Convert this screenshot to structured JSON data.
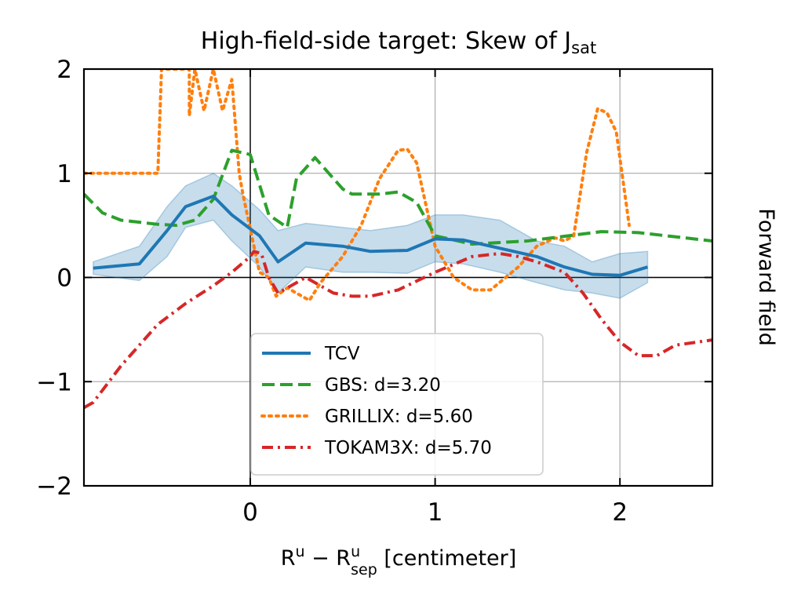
{
  "chart_data": {
    "type": "line",
    "title": "High-field-side target: Skew of J",
    "title_subscript": "sat",
    "xlabel": {
      "base1": "R",
      "sup1": "u",
      "minus": " − ",
      "base2": "R",
      "sup2": "u",
      "sub2": "sep",
      "unit": " [centimeter]"
    },
    "ylabel_right": "Forward field",
    "xlim": [
      -0.9,
      2.5
    ],
    "ylim": [
      -2,
      2
    ],
    "xticks": [
      0,
      1,
      2
    ],
    "xtick_labels": [
      "0",
      "1",
      "2"
    ],
    "yticks": [
      -2,
      -1,
      0,
      1,
      2
    ],
    "ytick_labels": [
      "−2",
      "−1",
      "0",
      "1",
      "2"
    ],
    "grid": true,
    "zero_lines": true,
    "legend_position": "lower-center",
    "series": [
      {
        "name": "TCV",
        "color": "#1f77b4",
        "style": "solid",
        "band_color": "#1f77b4",
        "x": [
          -0.85,
          -0.6,
          -0.45,
          -0.35,
          -0.2,
          -0.1,
          0.05,
          0.15,
          0.3,
          0.5,
          0.65,
          0.85,
          1.0,
          1.15,
          1.35,
          1.55,
          1.7,
          1.85,
          2.0,
          2.15
        ],
        "y": [
          0.09,
          0.13,
          0.45,
          0.68,
          0.78,
          0.6,
          0.4,
          0.15,
          0.33,
          0.3,
          0.25,
          0.26,
          0.37,
          0.36,
          0.28,
          0.2,
          0.1,
          0.03,
          0.02,
          0.1
        ],
        "upper": [
          0.15,
          0.3,
          0.68,
          0.88,
          1.0,
          0.88,
          0.65,
          0.45,
          0.52,
          0.48,
          0.45,
          0.5,
          0.6,
          0.6,
          0.55,
          0.35,
          0.3,
          0.15,
          0.23,
          0.25
        ],
        "lower": [
          0.03,
          -0.03,
          0.2,
          0.48,
          0.55,
          0.35,
          0.1,
          -0.15,
          0.1,
          0.05,
          0.05,
          0.04,
          0.15,
          0.13,
          0.05,
          -0.05,
          -0.12,
          -0.15,
          -0.2,
          -0.05
        ]
      },
      {
        "name": "GBS: d=3.20",
        "color": "#2ca02c",
        "style": "dashed",
        "x": [
          -0.9,
          -0.8,
          -0.7,
          -0.5,
          -0.4,
          -0.3,
          -0.2,
          -0.1,
          0.0,
          0.1,
          0.2,
          0.25,
          0.35,
          0.5,
          0.55,
          0.7,
          0.8,
          0.9,
          1.0,
          1.2,
          1.5,
          1.9,
          2.1,
          2.5
        ],
        "y": [
          0.8,
          0.62,
          0.55,
          0.51,
          0.5,
          0.55,
          0.75,
          1.22,
          1.18,
          0.6,
          0.48,
          0.95,
          1.15,
          0.85,
          0.8,
          0.8,
          0.82,
          0.72,
          0.4,
          0.32,
          0.35,
          0.44,
          0.43,
          0.35
        ]
      },
      {
        "name": "GRILLIX: d=5.60",
        "color": "#ff7f0e",
        "style": "dotted",
        "x": [
          -0.9,
          -0.5,
          -0.48,
          -0.33,
          -0.33,
          -0.3,
          -0.25,
          -0.2,
          -0.15,
          -0.1,
          -0.06,
          -0.04,
          0.05,
          0.1,
          0.14,
          0.2,
          0.32,
          0.38,
          0.5,
          0.6,
          0.7,
          0.8,
          0.85,
          0.9,
          0.95,
          1.0,
          1.1,
          1.2,
          1.3,
          1.45,
          1.55,
          1.65,
          1.7,
          1.75,
          1.82,
          1.88,
          1.93,
          1.98,
          2.05
        ],
        "y": [
          1.0,
          1.0,
          2.0,
          2.0,
          1.55,
          2.0,
          1.6,
          2.0,
          1.6,
          1.9,
          1.0,
          0.8,
          0.05,
          0.0,
          -0.18,
          -0.1,
          -0.22,
          -0.05,
          0.2,
          0.5,
          0.95,
          1.22,
          1.23,
          1.1,
          0.7,
          0.3,
          0.0,
          -0.12,
          -0.12,
          0.1,
          0.3,
          0.38,
          0.35,
          0.4,
          1.2,
          1.62,
          1.58,
          1.4,
          0.5
        ]
      },
      {
        "name": "TOKAM3X: d=5.70",
        "color": "#d62728",
        "style": "dashdot",
        "x": [
          -0.9,
          -0.85,
          -0.7,
          -0.5,
          -0.35,
          -0.2,
          -0.1,
          0.0,
          0.02,
          0.06,
          0.1,
          0.15,
          0.2,
          0.3,
          0.35,
          0.45,
          0.55,
          0.65,
          0.8,
          1.0,
          1.2,
          1.35,
          1.45,
          1.55,
          1.7,
          1.8,
          1.9,
          2.0,
          2.1,
          2.2,
          2.3,
          2.5
        ],
        "y": [
          -1.25,
          -1.2,
          -0.85,
          -0.45,
          -0.25,
          -0.08,
          0.05,
          0.2,
          0.25,
          0.23,
          0.0,
          -0.15,
          -0.1,
          0.0,
          -0.05,
          -0.15,
          -0.18,
          -0.18,
          -0.12,
          0.05,
          0.2,
          0.23,
          0.2,
          0.15,
          0.05,
          -0.15,
          -0.4,
          -0.62,
          -0.75,
          -0.75,
          -0.65,
          -0.6
        ]
      }
    ]
  }
}
